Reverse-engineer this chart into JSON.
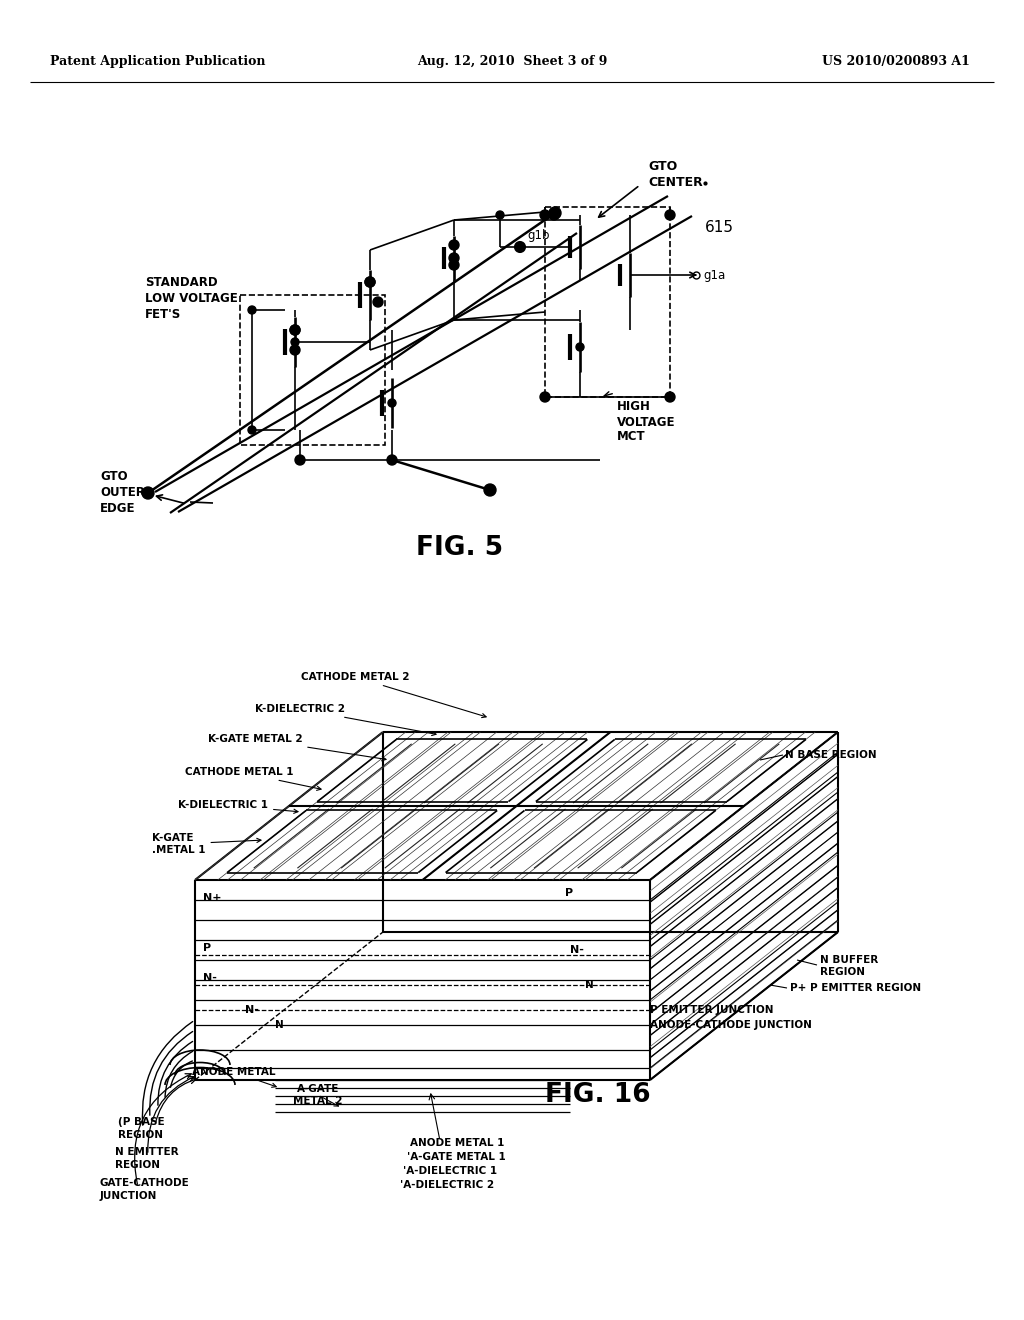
{
  "background_color": "#ffffff",
  "page_width": 10.24,
  "page_height": 13.2,
  "header": {
    "left": "Patent Application Publication",
    "center": "Aug. 12, 2010  Sheet 3 of 9",
    "right": "US 2010/0200893 A1",
    "fontsize": 9
  }
}
